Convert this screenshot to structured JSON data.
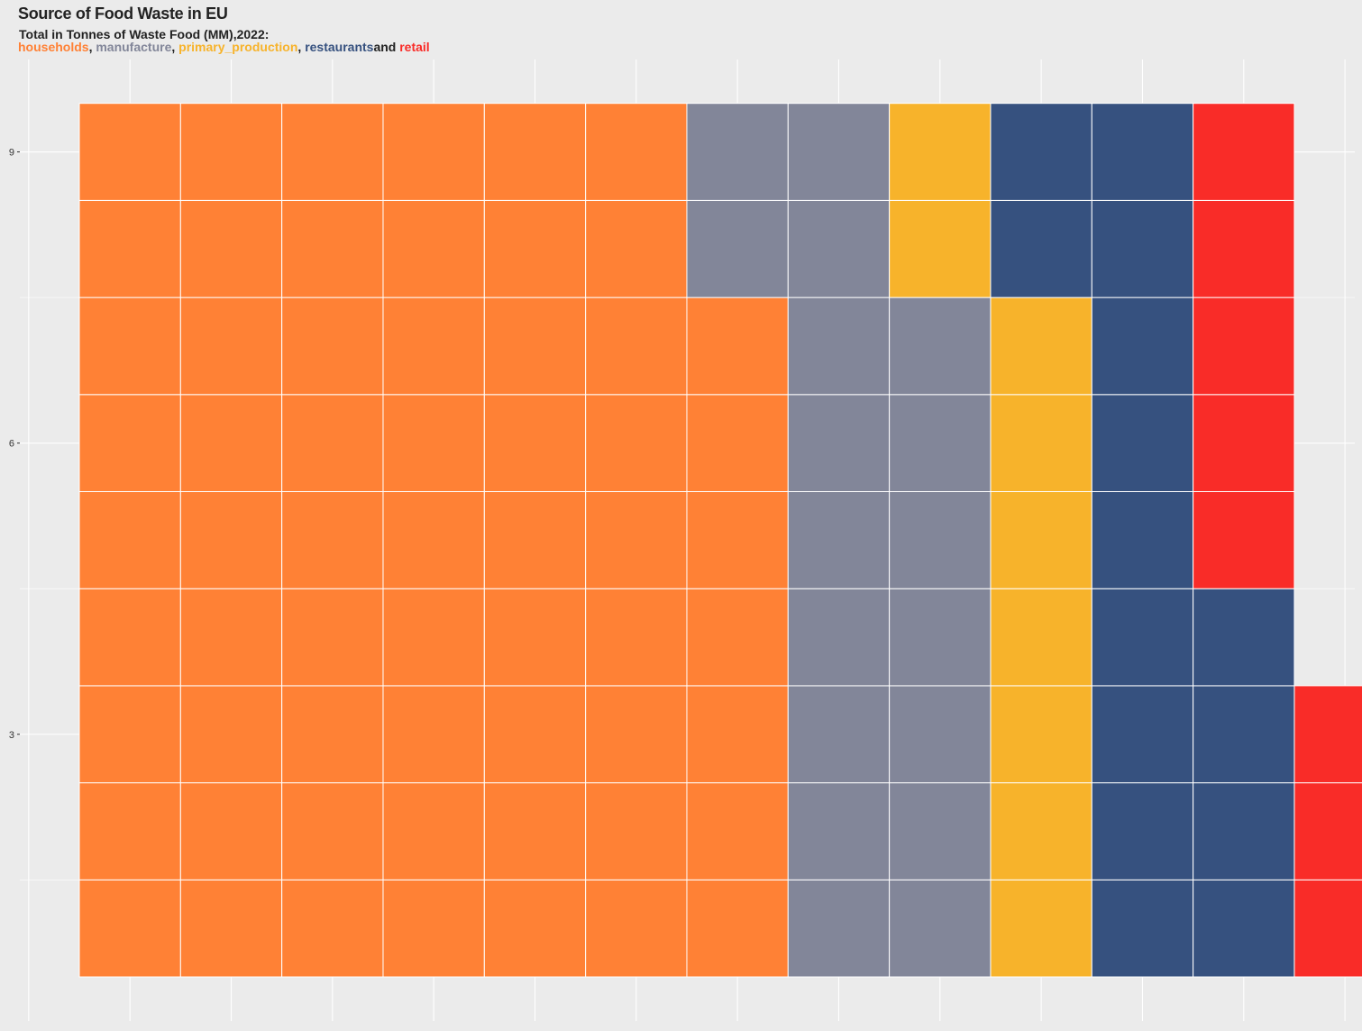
{
  "chart_data": {
    "type": "waffle",
    "title": "Source of Food Waste in EU",
    "subtitle": "Total in Tonnes of Waste Food (MM),2022:",
    "legend_separators": [
      ", ",
      ", ",
      ", ",
      "and "
    ],
    "categories": [
      "households",
      "manufacture",
      "primary_production",
      "restaurants",
      "retail"
    ],
    "values": [
      61,
      18,
      9,
      15,
      8
    ],
    "colors": [
      "#ff8135",
      "#828699",
      "#f7b32b",
      "#36517f",
      "#f92c28"
    ],
    "grid_rows": 9,
    "y_ticks": [
      3,
      6,
      9
    ],
    "grid": true
  }
}
